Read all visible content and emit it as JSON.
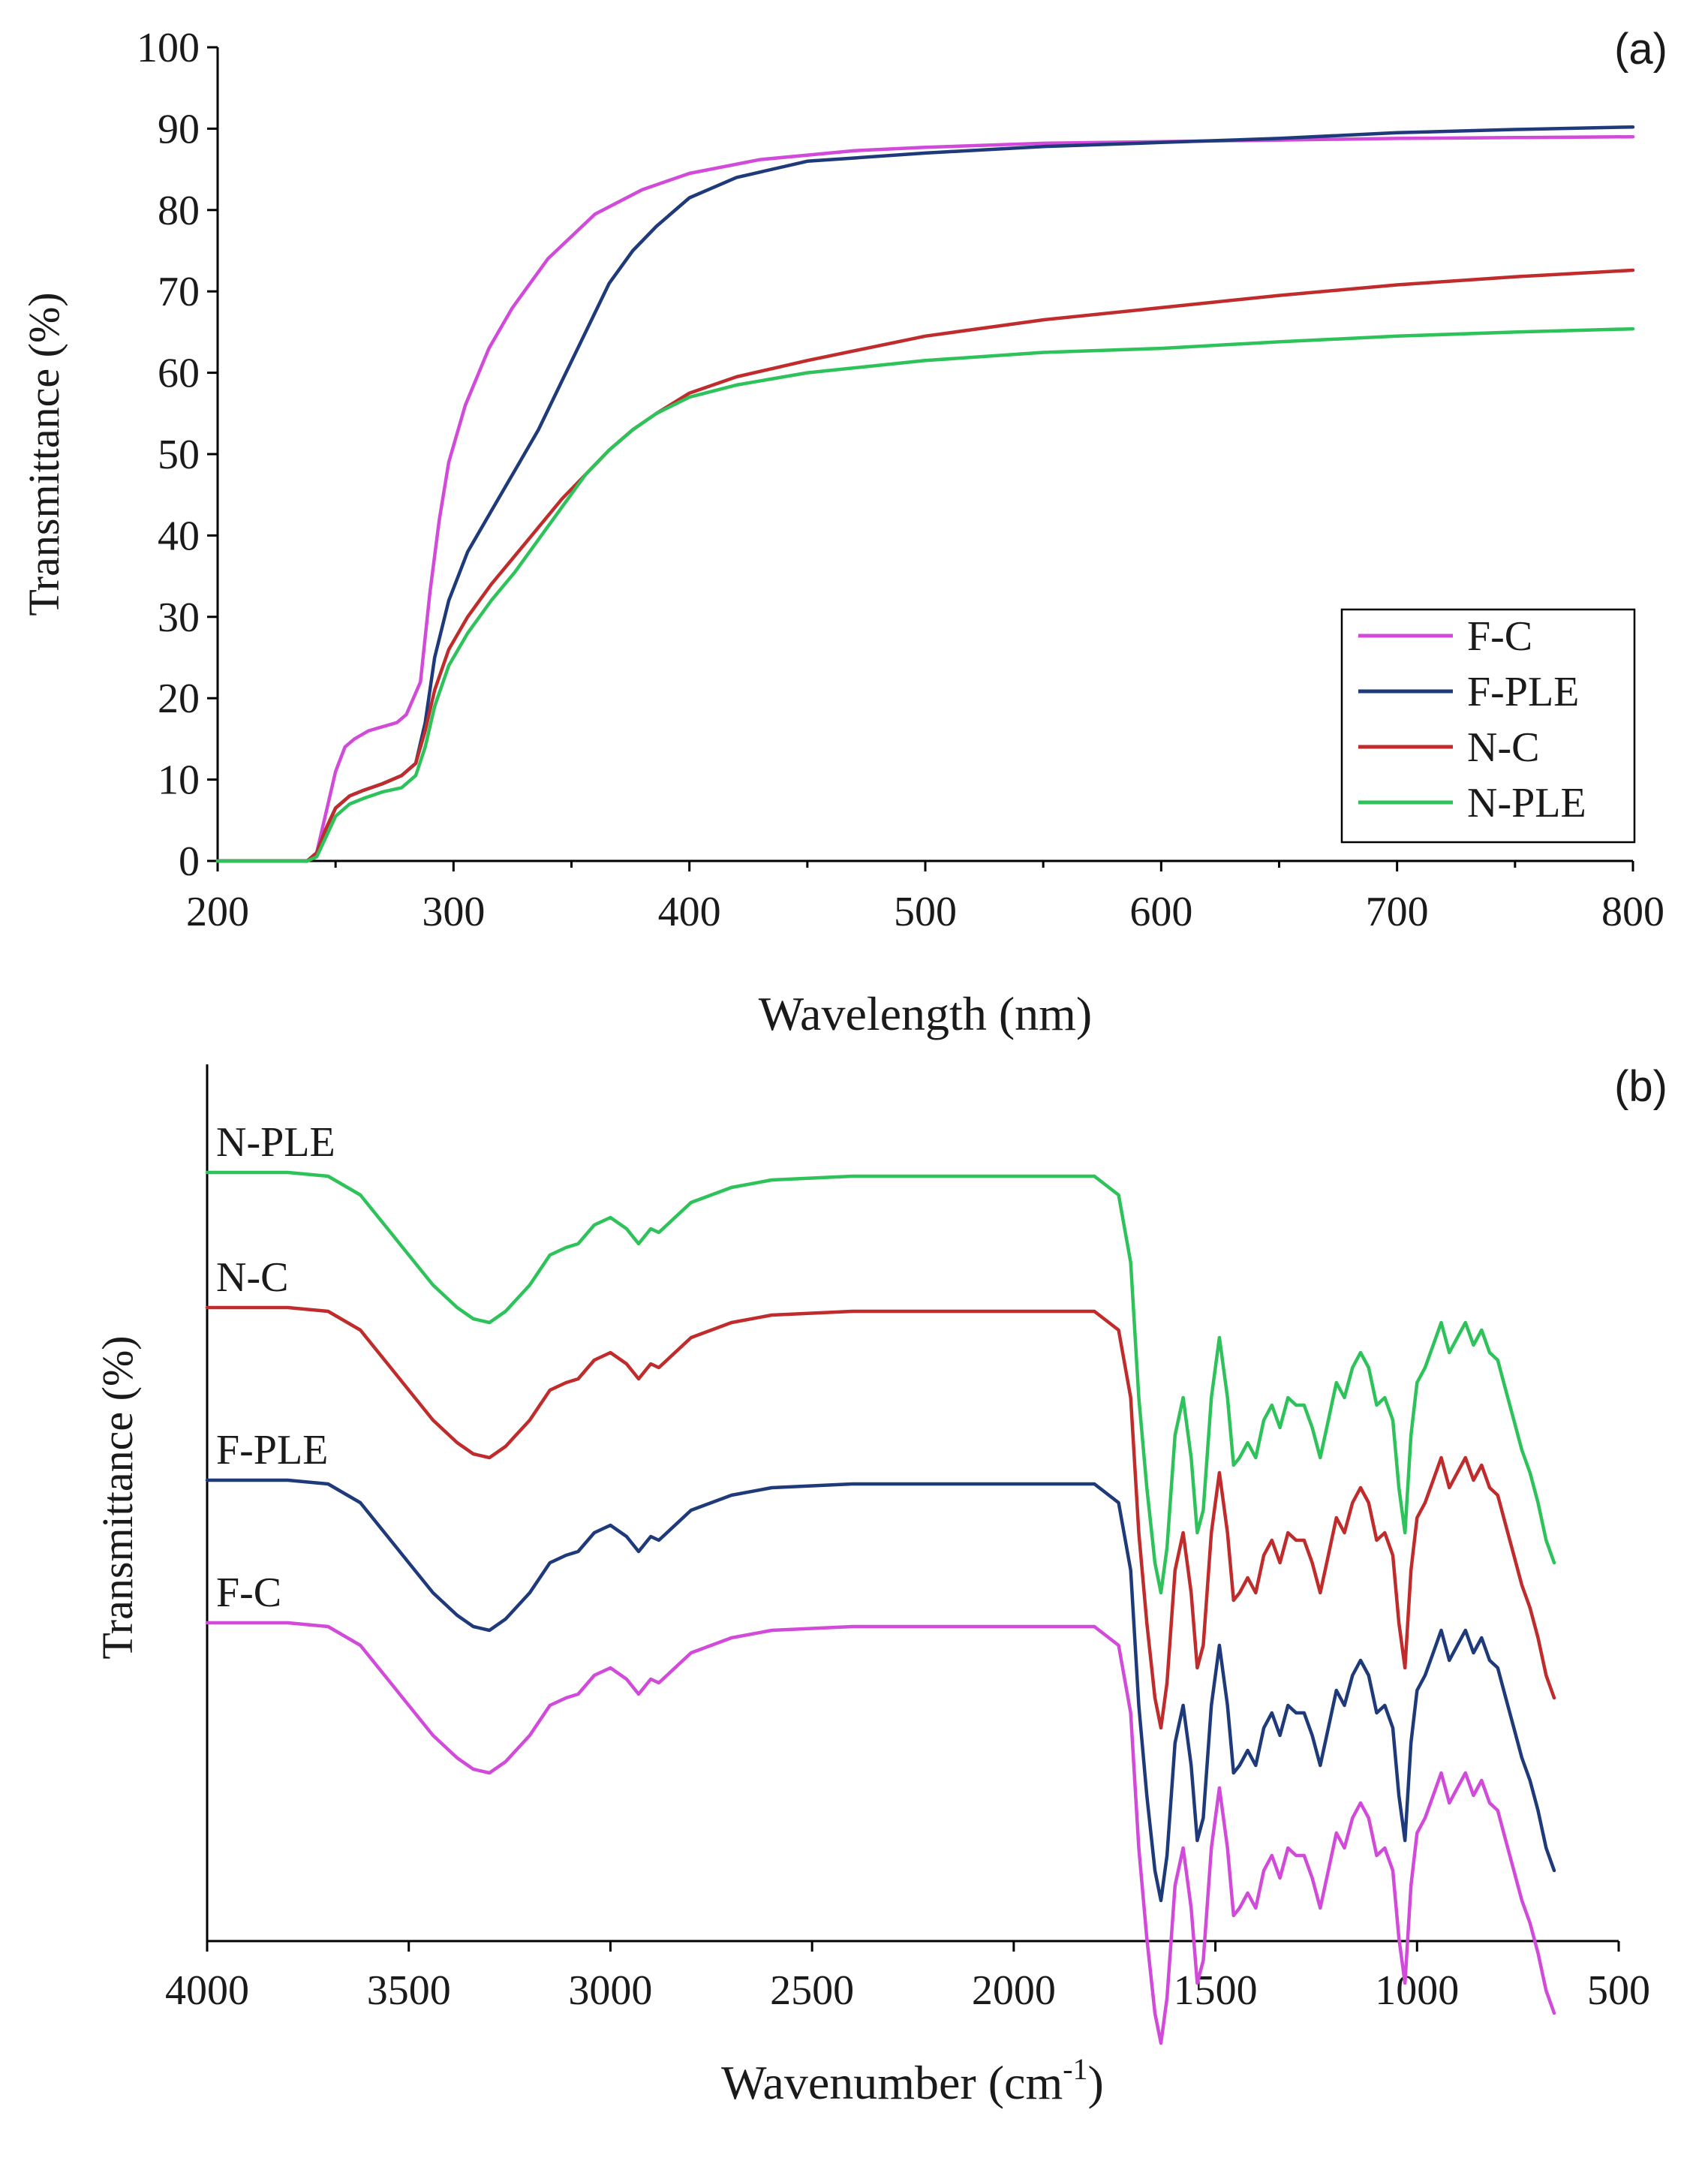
{
  "chart_data": [
    {
      "type": "line",
      "panel": "(a)",
      "xlabel": "Wavelength (nm)",
      "ylabel": "Transmittance (%)",
      "xlim": [
        200,
        800
      ],
      "ylim": [
        0,
        100
      ],
      "xticks": [
        200,
        300,
        400,
        500,
        600,
        700,
        800
      ],
      "yticks": [
        0,
        10,
        20,
        30,
        40,
        50,
        60,
        70,
        80,
        90,
        100
      ],
      "legend_position": "bottom-right",
      "series": [
        {
          "name": "F-C",
          "color": "#d24ad9",
          "x": [
            200,
            238,
            242,
            246,
            250,
            254,
            258,
            264,
            270,
            276,
            280,
            286,
            290,
            294,
            298,
            305,
            315,
            325,
            340,
            360,
            380,
            400,
            430,
            470,
            500,
            550,
            600,
            650,
            700,
            750,
            800
          ],
          "y": [
            0,
            0,
            1,
            6,
            11,
            14,
            15,
            16,
            16.5,
            17,
            18,
            22,
            33,
            42,
            49,
            56,
            63,
            68,
            74,
            79.5,
            82.5,
            84.5,
            86.2,
            87.3,
            87.7,
            88.2,
            88.4,
            88.6,
            88.8,
            88.9,
            89
          ]
        },
        {
          "name": "F-PLE",
          "color": "#1f3a7a",
          "x": [
            200,
            238,
            242,
            246,
            250,
            256,
            262,
            270,
            278,
            284,
            288,
            292,
            298,
            306,
            316,
            326,
            336,
            346,
            356,
            366,
            376,
            386,
            400,
            420,
            450,
            500,
            550,
            600,
            650,
            700,
            750,
            800
          ],
          "y": [
            0,
            0,
            1,
            4,
            6.5,
            8,
            8.7,
            9.5,
            10.5,
            12,
            17,
            25,
            32,
            38,
            43,
            48,
            53,
            59,
            65,
            71,
            75,
            78,
            81.5,
            84,
            86,
            87,
            87.8,
            88.3,
            88.8,
            89.5,
            89.9,
            90.2
          ]
        },
        {
          "name": "N-C",
          "color": "#c02b2b",
          "x": [
            200,
            238,
            242,
            246,
            250,
            256,
            262,
            270,
            278,
            284,
            288,
            292,
            298,
            306,
            316,
            326,
            336,
            346,
            356,
            366,
            376,
            386,
            400,
            420,
            450,
            500,
            550,
            600,
            650,
            700,
            750,
            800
          ],
          "y": [
            0,
            0,
            1,
            4,
            6.5,
            8,
            8.7,
            9.5,
            10.5,
            12,
            16,
            21,
            26,
            30,
            34,
            37.5,
            41,
            44.5,
            47.5,
            50.5,
            53,
            55,
            57.5,
            59.5,
            61.5,
            64.5,
            66.5,
            68,
            69.5,
            70.8,
            71.8,
            72.6
          ]
        },
        {
          "name": "N-PLE",
          "color": "#2ec25a",
          "x": [
            200,
            238,
            242,
            246,
            250,
            256,
            262,
            270,
            278,
            284,
            288,
            292,
            298,
            306,
            316,
            326,
            336,
            346,
            356,
            366,
            376,
            386,
            400,
            420,
            450,
            500,
            550,
            600,
            650,
            700,
            750,
            800
          ],
          "y": [
            0,
            0,
            0.5,
            3,
            5.5,
            7,
            7.7,
            8.5,
            9,
            10.5,
            14,
            19,
            24,
            28,
            32,
            35.5,
            39.5,
            43.5,
            47.5,
            50.5,
            53,
            55,
            57,
            58.5,
            60,
            61.5,
            62.5,
            63,
            63.8,
            64.5,
            65,
            65.4
          ]
        }
      ]
    },
    {
      "type": "line",
      "panel": "(b)",
      "xlabel_main": "Wavenumber (cm",
      "xlabel_sup": "-1",
      "xlabel_end": ")",
      "ylabel": "Transmittance (%)",
      "xlim": [
        4000,
        500
      ],
      "xticks": [
        4000,
        3500,
        3000,
        2500,
        2000,
        1500,
        1000,
        500
      ],
      "series": [
        {
          "name": "N-PLE",
          "color": "#2ec25a",
          "offset": 0
        },
        {
          "name": "N-C",
          "color": "#c02b2b",
          "offset": -180
        },
        {
          "name": "F-PLE",
          "color": "#1f3a7a",
          "offset": -410
        },
        {
          "name": "F-C",
          "color": "#d24ad9",
          "offset": -600
        }
      ],
      "x": [
        4000,
        3800,
        3700,
        3620,
        3560,
        3500,
        3440,
        3380,
        3340,
        3300,
        3260,
        3200,
        3150,
        3110,
        3080,
        3040,
        3000,
        2960,
        2930,
        2900,
        2880,
        2860,
        2800,
        2700,
        2600,
        2400,
        2200,
        2000,
        1800,
        1740,
        1710,
        1690,
        1670,
        1650,
        1635,
        1620,
        1600,
        1580,
        1560,
        1545,
        1530,
        1510,
        1490,
        1470,
        1455,
        1440,
        1420,
        1400,
        1380,
        1360,
        1340,
        1320,
        1300,
        1280,
        1260,
        1240,
        1220,
        1200,
        1180,
        1160,
        1140,
        1120,
        1100,
        1080,
        1060,
        1045,
        1030,
        1015,
        1000,
        980,
        960,
        940,
        920,
        900,
        880,
        860,
        840,
        820,
        800,
        780,
        760,
        740,
        720,
        700,
        680,
        660
      ],
      "y": [
        0,
        0,
        -5,
        -30,
        -70,
        -110,
        -150,
        -180,
        -195,
        -200,
        -185,
        -150,
        -110,
        -100,
        -95,
        -70,
        -60,
        -75,
        -95,
        -75,
        -80,
        -70,
        -40,
        -20,
        -10,
        -5,
        -5,
        -5,
        -5,
        -30,
        -120,
        -300,
        -420,
        -520,
        -560,
        -500,
        -350,
        -300,
        -380,
        -480,
        -450,
        -300,
        -220,
        -300,
        -390,
        -380,
        -360,
        -380,
        -330,
        -310,
        -340,
        -300,
        -310,
        -310,
        -340,
        -380,
        -330,
        -280,
        -300,
        -260,
        -240,
        -260,
        -310,
        -300,
        -330,
        -420,
        -480,
        -350,
        -280,
        -260,
        -230,
        -200,
        -240,
        -220,
        -200,
        -230,
        -210,
        -240,
        -250,
        -290,
        -330,
        -370,
        -400,
        -440,
        -490,
        -520
      ]
    }
  ]
}
